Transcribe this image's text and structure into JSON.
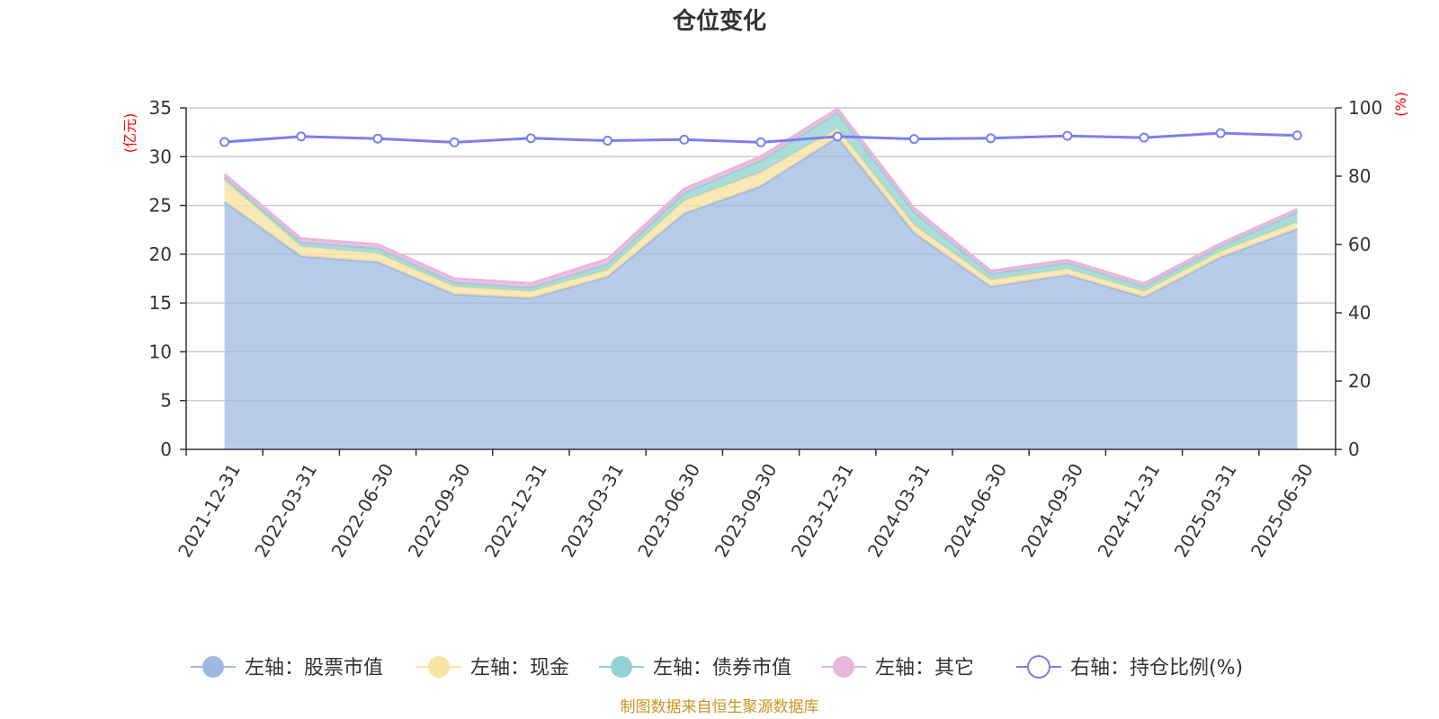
{
  "chart_data": {
    "type": "area",
    "title": "仓位变化",
    "x": [
      "2021-12-31",
      "2022-03-31",
      "2022-06-30",
      "2022-09-30",
      "2022-12-31",
      "2023-03-31",
      "2023-06-30",
      "2023-09-30",
      "2023-12-31",
      "2024-03-31",
      "2024-06-30",
      "2024-09-30",
      "2024-12-31",
      "2025-03-31",
      "2025-06-30"
    ],
    "left_axis": {
      "unit": "(亿元)",
      "ylim": [
        0,
        35
      ],
      "ticks": [
        0,
        5,
        10,
        15,
        20,
        25,
        30,
        35
      ]
    },
    "right_axis": {
      "unit": "(%)",
      "ylim": [
        0,
        100
      ],
      "ticks": [
        0,
        20,
        40,
        60,
        80,
        100
      ]
    },
    "grid": true,
    "stacked": true,
    "legend_position": "bottom",
    "series": [
      {
        "name": "左轴：股票市值",
        "axis": "left",
        "kind": "area",
        "color": "#9db8e0",
        "values": [
          25.4,
          19.8,
          19.2,
          15.9,
          15.5,
          17.7,
          24.2,
          27.0,
          32.0,
          22.2,
          16.7,
          17.9,
          15.6,
          19.7,
          22.6
        ]
      },
      {
        "name": "左轴：现金",
        "axis": "left",
        "kind": "area",
        "color": "#f8e3a3",
        "values": [
          2.2,
          1.0,
          0.9,
          0.8,
          0.7,
          0.7,
          1.3,
          1.4,
          0.9,
          0.8,
          0.7,
          0.6,
          0.6,
          0.6,
          0.7
        ]
      },
      {
        "name": "左轴：债券市值",
        "axis": "left",
        "kind": "area",
        "color": "#92d2d2",
        "values": [
          0.3,
          0.4,
          0.5,
          0.4,
          0.4,
          0.6,
          0.8,
          1.2,
          1.6,
          1.3,
          0.6,
          0.6,
          0.5,
          0.5,
          1.0
        ]
      },
      {
        "name": "左轴：其它",
        "axis": "left",
        "kind": "area",
        "color": "#e9b6dc",
        "values": [
          0.3,
          0.4,
          0.4,
          0.4,
          0.4,
          0.5,
          0.4,
          0.4,
          0.4,
          0.4,
          0.3,
          0.3,
          0.3,
          0.3,
          0.3
        ]
      },
      {
        "name": "右轴：持仓比例(%)",
        "axis": "right",
        "kind": "line",
        "color": "#7b7ff0",
        "values": [
          90.0,
          91.6,
          91.0,
          89.9,
          91.1,
          90.4,
          90.7,
          89.9,
          91.6,
          90.9,
          91.1,
          91.8,
          91.3,
          92.6,
          91.9
        ]
      }
    ]
  },
  "source": "制图数据来自恒生聚源数据库"
}
